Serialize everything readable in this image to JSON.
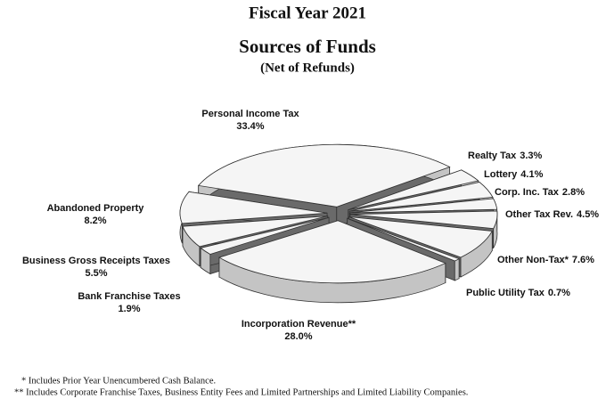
{
  "chart_data": {
    "type": "pie",
    "title": "Fiscal Year 2021",
    "subtitle": "Sources of Funds",
    "note": "(Net of Refunds)",
    "categories": [
      "Personal Income Tax",
      "Realty Tax",
      "Lottery",
      "Corp. Inc. Tax",
      "Other Tax Rev.",
      "Other Non-Tax*",
      "Public Utility Tax",
      "Incorporation Revenue**",
      "Bank Franchise Taxes",
      "Business Gross Receipts Taxes",
      "Abandoned Property"
    ],
    "values": [
      33.4,
      3.3,
      4.1,
      2.8,
      4.5,
      7.6,
      0.7,
      28.0,
      1.9,
      5.5,
      8.2
    ],
    "value_labels": [
      "33.4%",
      "3.3%",
      "4.1%",
      "2.8%",
      "4.5%",
      "7.6%",
      "0.7%",
      "28.0%",
      "1.9%",
      "5.5%",
      "8.2%"
    ],
    "footnotes": [
      "* Includes Prior Year Unencumbered Cash Balance.",
      "** Includes Corporate Franchise Taxes, Business Entity Fees and Limited Partnerships and Limited Liability Companies."
    ]
  }
}
